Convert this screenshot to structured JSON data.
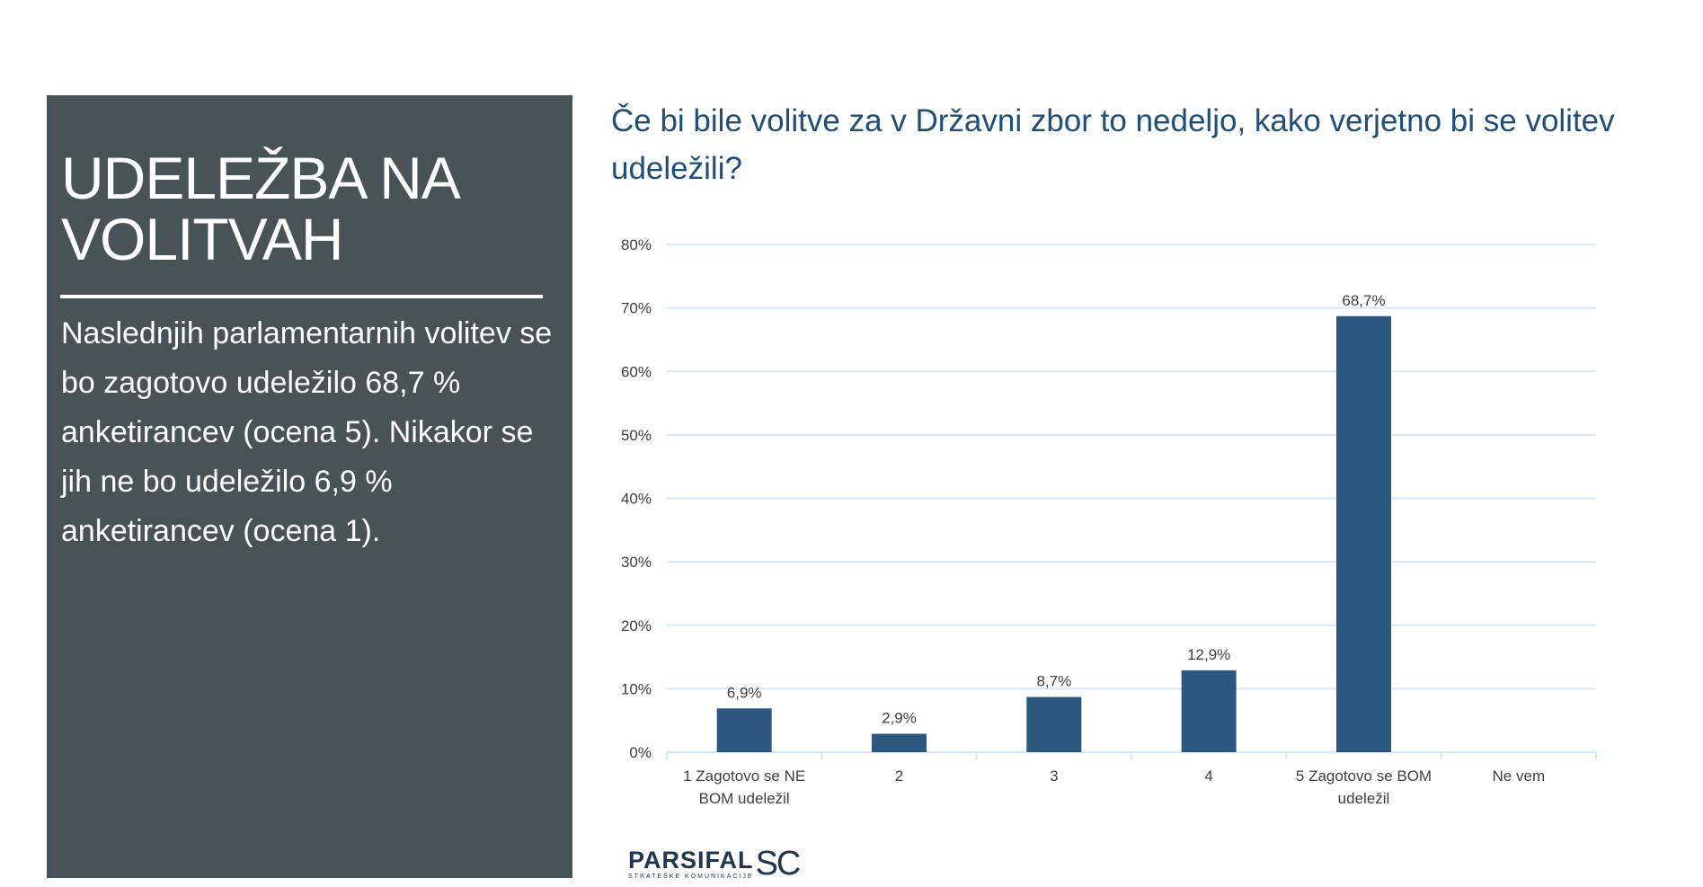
{
  "panel": {
    "title": "UDELEŽBA NA VOLITVAH",
    "body": "Naslednjih parlamentarnih volitev se bo zagotovo udeležilo 68,7 % anketirancev (ocena 5). Nikakor se jih ne bo udeležilo 6,9 % anketirancev (ocena 1)."
  },
  "logo": {
    "main": "PARSIFAL",
    "sc": "SC",
    "sub": "STRATEŠKE KOMUNIKACIJE"
  },
  "colors": {
    "panel": "#485358",
    "bar": "#2c5880",
    "grid": "#d6e9f8",
    "title": "#1f4e79"
  },
  "chart_data": {
    "type": "bar",
    "title": "Če bi bile volitve za v Državni zbor to nedeljo, kako verjetno bi se volitev udeležili?",
    "categories": [
      [
        "1 Zagotovo se NE",
        "BOM udeležil"
      ],
      [
        "2"
      ],
      [
        "3"
      ],
      [
        "4"
      ],
      [
        "5 Zagotovo se BOM",
        "udeležil"
      ],
      [
        "Ne vem"
      ]
    ],
    "values": [
      6.9,
      2.9,
      8.7,
      12.9,
      68.7,
      null
    ],
    "data_labels": [
      "6,9%",
      "2,9%",
      "8,7%",
      "12,9%",
      "68,7%",
      ""
    ],
    "ylim": [
      0,
      80
    ],
    "yticks": [
      "0%",
      "10%",
      "20%",
      "30%",
      "40%",
      "50%",
      "60%",
      "70%",
      "80%"
    ],
    "grid": true,
    "xlabel": "",
    "ylabel": ""
  }
}
